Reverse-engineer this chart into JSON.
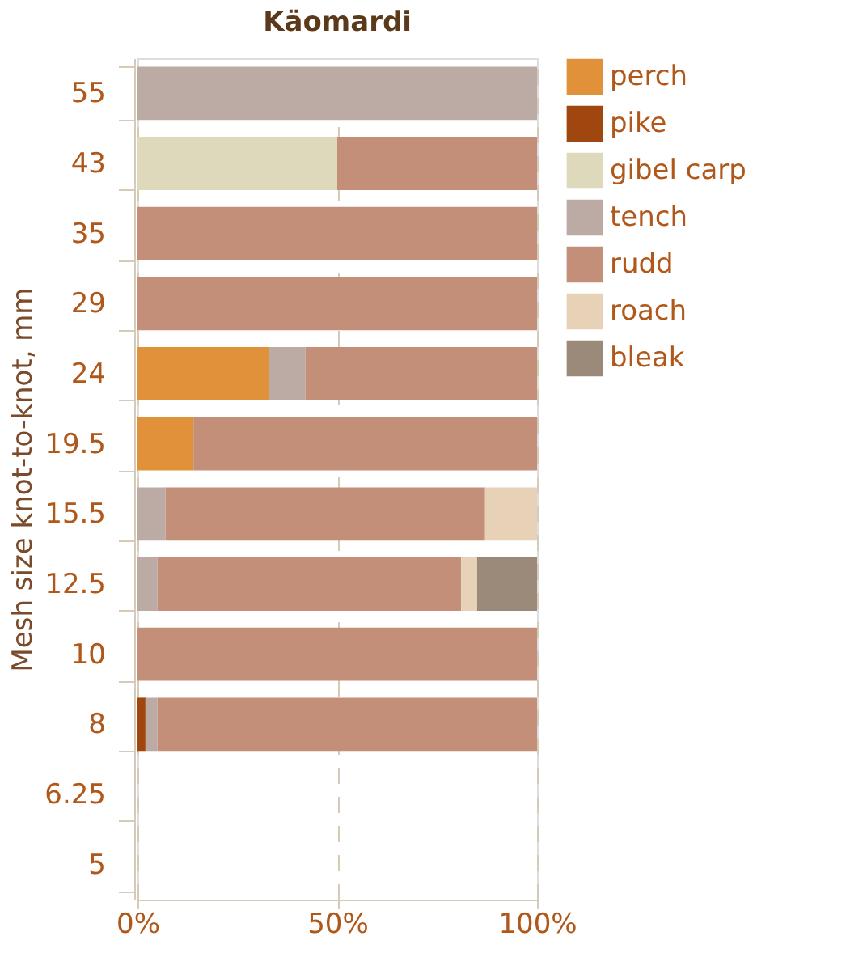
{
  "chart_data": {
    "type": "bar",
    "orientation": "horizontal",
    "stacked": true,
    "title": "Käomardi",
    "ylabel": "Mesh size knot-to-knot, mm",
    "categories": [
      "55",
      "43",
      "35",
      "29",
      "24",
      "19.5",
      "15.5",
      "12.5",
      "10",
      "8",
      "6.25",
      "5"
    ],
    "series": [
      {
        "name": "perch",
        "color": "#e0913a",
        "values": [
          null,
          null,
          null,
          null,
          33,
          14,
          null,
          null,
          null,
          null,
          null,
          null
        ]
      },
      {
        "name": "pike",
        "color": "#a0470f",
        "values": [
          null,
          null,
          null,
          null,
          null,
          null,
          null,
          null,
          null,
          2,
          null,
          null
        ]
      },
      {
        "name": "gibel carp",
        "color": "#dfd9bb",
        "values": [
          null,
          50,
          null,
          null,
          null,
          null,
          null,
          null,
          null,
          null,
          null,
          null
        ]
      },
      {
        "name": "tench",
        "color": "#bcaba4",
        "values": [
          100,
          null,
          null,
          null,
          9,
          null,
          7,
          5,
          null,
          3,
          null,
          null
        ]
      },
      {
        "name": "rudd",
        "color": "#c48f78",
        "values": [
          null,
          50,
          100,
          100,
          58,
          86,
          80,
          76,
          100,
          95,
          null,
          null
        ]
      },
      {
        "name": "roach",
        "color": "#e7d2b7",
        "values": [
          null,
          null,
          null,
          null,
          null,
          null,
          13,
          4,
          null,
          null,
          null,
          null
        ]
      },
      {
        "name": "bleak",
        "color": "#9b8a7a",
        "values": [
          null,
          null,
          null,
          null,
          null,
          null,
          null,
          15,
          null,
          null,
          null,
          null
        ]
      }
    ],
    "xlim": [
      0,
      100
    ],
    "xticks": [
      {
        "value": 0,
        "label": "0%"
      },
      {
        "value": 50,
        "label": "50%"
      },
      {
        "value": 100,
        "label": "100%"
      }
    ],
    "grid": "x",
    "legend": "right"
  }
}
